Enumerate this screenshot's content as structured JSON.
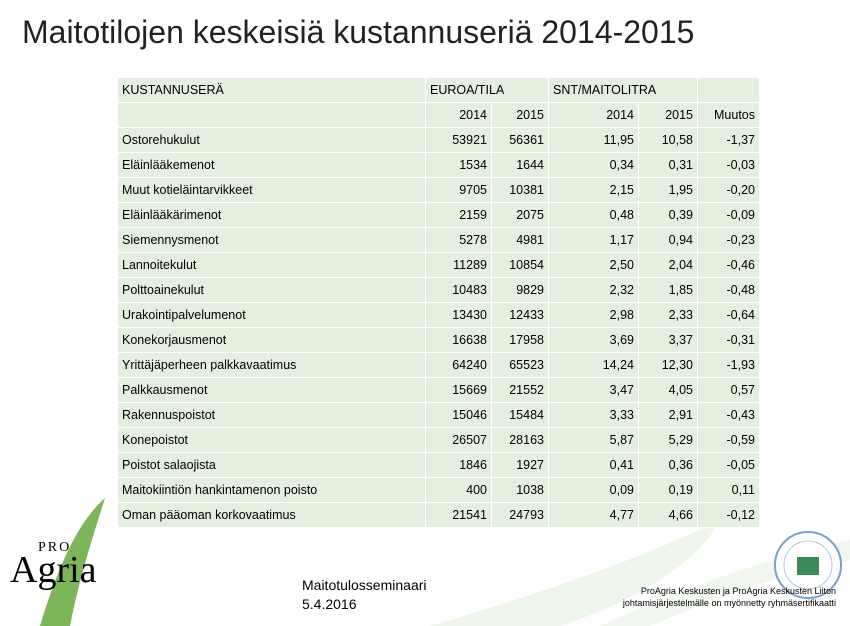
{
  "title": "Maitotilojen keskeisiä kustannuseriä 2014-2015",
  "table": {
    "header": [
      "KUSTANNUSERÄ",
      "EUROA/TILA",
      "SNT/MAITOLITRA"
    ],
    "subheader": [
      "2014",
      "2015",
      "2014",
      "2015",
      "Muutos"
    ],
    "rows": [
      [
        "Ostorehukulut",
        "53921",
        "56361",
        "11,95",
        "10,58",
        "-1,37"
      ],
      [
        "Eläinlääkemenot",
        "1534",
        "1644",
        "0,34",
        "0,31",
        "-0,03"
      ],
      [
        "Muut kotieläintarvikkeet",
        "9705",
        "10381",
        "2,15",
        "1,95",
        "-0,20"
      ],
      [
        "Eläinlääkärimenot",
        "2159",
        "2075",
        "0,48",
        "0,39",
        "-0,09"
      ],
      [
        "Siemennysmenot",
        "5278",
        "4981",
        "1,17",
        "0,94",
        "-0,23"
      ],
      [
        "Lannoitekulut",
        "11289",
        "10854",
        "2,50",
        "2,04",
        "-0,46"
      ],
      [
        "Polttoainekulut",
        "10483",
        "9829",
        "2,32",
        "1,85",
        "-0,48"
      ],
      [
        "Urakointipalvelumenot",
        "13430",
        "12433",
        "2,98",
        "2,33",
        "-0,64"
      ],
      [
        "Konekorjausmenot",
        "16638",
        "17958",
        "3,69",
        "3,37",
        "-0,31"
      ],
      [
        "Yrittäjäperheen palkkavaatimus",
        "64240",
        "65523",
        "14,24",
        "12,30",
        "-1,93"
      ],
      [
        "Palkkausmenot",
        "15669",
        "21552",
        "3,47",
        "4,05",
        "0,57"
      ],
      [
        "Rakennuspoistot",
        "15046",
        "15484",
        "3,33",
        "2,91",
        "-0,43"
      ],
      [
        "Konepoistot",
        "26507",
        "28163",
        "5,87",
        "5,29",
        "-0,59"
      ],
      [
        "Poistot salaojista",
        "1846",
        "1927",
        "0,41",
        "0,36",
        "-0,05"
      ],
      [
        "Maitokiintiön hankintamenon poisto",
        "400",
        "1038",
        "0,09",
        "0,19",
        "0,11"
      ],
      [
        "Oman pääoman korkovaatimus",
        "21541",
        "24793",
        "4,77",
        "4,66",
        "-0,12"
      ]
    ]
  },
  "footer": {
    "event": "Maitotulosseminaari",
    "date": "5.4.2016",
    "cert": [
      "ProAgria Keskusten ja ProAgria Keskusten Liiton",
      "johtamisjärjestelmälle on myönnetty ryhmäsertifikaatti"
    ]
  },
  "logo": {
    "small": "PRO",
    "large": "Agria"
  }
}
